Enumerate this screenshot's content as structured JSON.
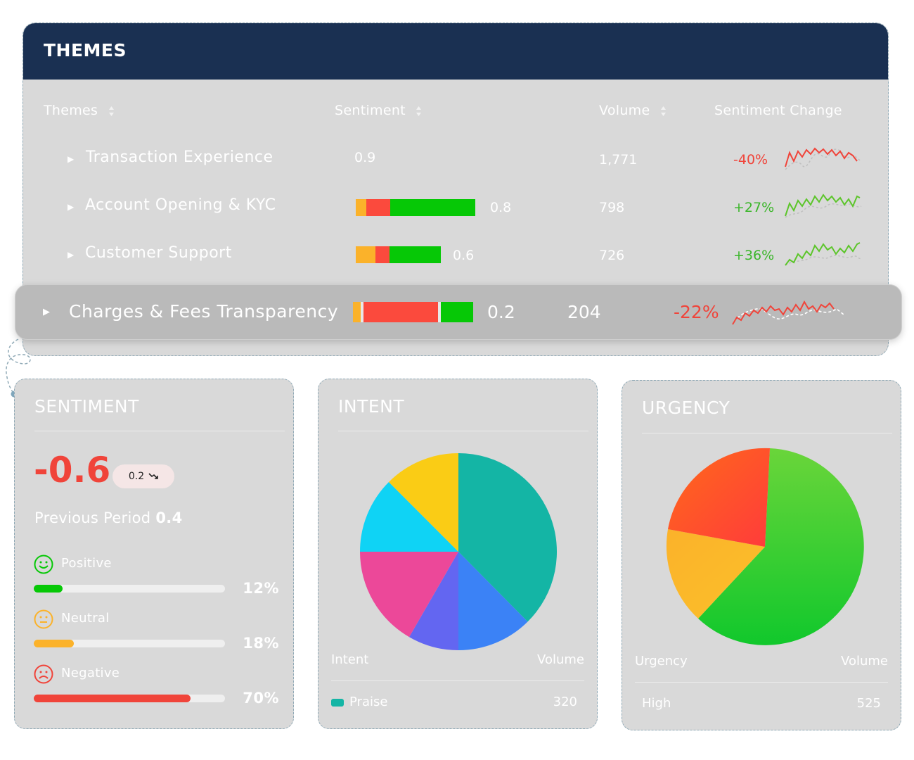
{
  "themes": {
    "title": "THEMES",
    "columns": [
      "Themes",
      "Sentiment",
      "Volume",
      "Sentiment Change"
    ],
    "rows": [
      {
        "name": "Transaction Experience",
        "score": "0.9",
        "volume": "1,771",
        "change": "-40%",
        "bar": null
      },
      {
        "name": "Account Opening & KYC",
        "score": "0.8",
        "volume": "798",
        "change": "+27%",
        "bar": [
          0.11,
          0.29,
          1.0
        ]
      },
      {
        "name": "Customer Support",
        "score": "0.6",
        "volume": "726",
        "change": "+36%",
        "bar": [
          0.23,
          0.4,
          1.0
        ]
      },
      {
        "name": "Charges & Fees Transparency",
        "score": "0.2",
        "volume": "204",
        "change": "-22%",
        "bar": [
          0.07,
          0.73,
          1.0
        ]
      }
    ]
  },
  "sentiment": {
    "title": "SENTIMENT",
    "score": "-0.6",
    "delta": "0.2",
    "prev_label": "Previous Period",
    "prev_value": "0.4",
    "items": [
      {
        "label": "Positive",
        "pct": "12%",
        "fill": 0.15,
        "color": "#06c806"
      },
      {
        "label": "Neutral",
        "pct": "18%",
        "fill": 0.21,
        "color": "#fbb22a"
      },
      {
        "label": "Negative",
        "pct": "70%",
        "fill": 0.82,
        "color": "#f0443a"
      }
    ]
  },
  "intent": {
    "title": "INTENT",
    "col_label": "Intent",
    "col_value": "Volume",
    "legend": [
      {
        "label": "Praise",
        "value": "320",
        "color": "#14b5a5"
      }
    ],
    "slice_colors": [
      "#14b5a5",
      "#3b82f6",
      "#6366f1",
      "#ec4899",
      "#0fd3f5",
      "#facc15"
    ]
  },
  "urgency": {
    "title": "URGENCY",
    "col_label": "Urgency",
    "col_value": "Volume",
    "legend": [
      {
        "label": "High",
        "value": "525"
      }
    ],
    "slice_colors": [
      "#2ecc32",
      "#fbb22a",
      "#ff5030"
    ]
  }
}
